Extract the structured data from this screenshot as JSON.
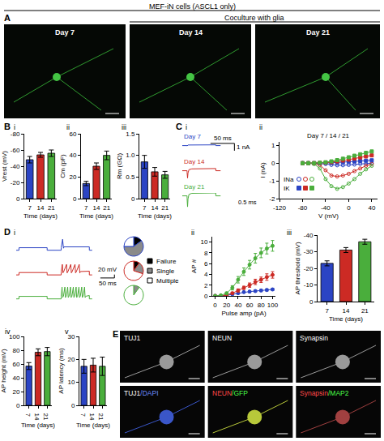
{
  "banner": {
    "title": "MEF-iN cells (ASCL1 only)",
    "subtitle": "Coculture with glia"
  },
  "panel_a": {
    "label": "A",
    "images": [
      "Day 7",
      "Day 14",
      "Day 21"
    ]
  },
  "panel_e": {
    "label": "E",
    "images": [
      [
        {
          "text": "TUJ1",
          "color": "#ffffff"
        }
      ],
      [
        {
          "text": "NEUN",
          "color": "#ffffff"
        }
      ],
      [
        {
          "text": "Synapsin",
          "color": "#ffffff"
        }
      ],
      [
        {
          "text": "TUJ1",
          "color": "#ffffff"
        },
        {
          "text": "/DAPI",
          "color": "#6a8cff"
        }
      ],
      [
        {
          "text": "NEUN",
          "color": "#ff4a4a"
        },
        {
          "text": "/GFP",
          "color": "#4aff4a"
        }
      ],
      [
        {
          "text": "Synapsin",
          "color": "#ff4a4a"
        },
        {
          "text": "/MAP2",
          "color": "#4aff4a"
        }
      ]
    ]
  },
  "chart_data": [
    {
      "type": "bar",
      "panel": "B",
      "sub": "i",
      "categories": [
        "7",
        "14",
        "21"
      ],
      "values": [
        -48,
        -54,
        -56
      ],
      "errors": [
        4,
        3,
        4
      ],
      "colors": [
        "#2b44c4",
        "#cc2a24",
        "#4aae3c"
      ],
      "x_label": "Time (days)",
      "y_label": "Vrest (mV)",
      "ylim": [
        0,
        -80
      ],
      "yticks": [
        0,
        -20,
        -40,
        -60,
        -80
      ]
    },
    {
      "type": "bar",
      "sub": "ii",
      "categories": [
        "7",
        "14",
        "21"
      ],
      "values": [
        14,
        30,
        40
      ],
      "errors": [
        2,
        3,
        4
      ],
      "colors": [
        "#2b44c4",
        "#cc2a24",
        "#4aae3c"
      ],
      "x_label": "Time (days)",
      "y_label": "Cm (pF)",
      "ylim": [
        0,
        60
      ],
      "yticks": [
        0,
        20,
        40,
        60
      ]
    },
    {
      "type": "bar",
      "sub": "iii",
      "categories": [
        "7",
        "14",
        "21"
      ],
      "values": [
        0.85,
        0.62,
        0.55
      ],
      "errors": [
        0.15,
        0.1,
        0.08
      ],
      "colors": [
        "#2b44c4",
        "#cc2a24",
        "#4aae3c"
      ],
      "x_label": "Time (days)",
      "y_label": "Rm (GΩ)",
      "ylim": [
        0,
        1.5
      ],
      "yticks": [
        0,
        0.5,
        {
          "value": 1,
          "label": "1.0"
        },
        1.5
      ]
    },
    {
      "type": "trace",
      "panel": "C",
      "sub": "i",
      "tick_labels": false,
      "xlim": [
        0,
        110
      ],
      "ylim": [
        -1.6,
        0.4
      ],
      "series": [
        {
          "name": "Day 7",
          "color": "#2b44c4",
          "x": [
            0,
            10,
            10,
            12,
            70,
            70,
            80
          ],
          "values": [
            0,
            0,
            -0.05,
            0.08,
            0.1,
            0,
            0
          ]
        },
        {
          "name": "Day 14",
          "color": "#cc2a24",
          "x": [
            0,
            10,
            10,
            11,
            12,
            14,
            20,
            70,
            70,
            80
          ],
          "values": [
            0,
            0,
            -0.2,
            -1.0,
            -0.3,
            0.15,
            0.25,
            0.3,
            0,
            0
          ]
        },
        {
          "name": "Day 21",
          "color": "#4aae3c",
          "x": [
            0,
            10,
            10,
            11,
            12,
            14,
            20,
            70,
            70,
            80
          ],
          "values": [
            0,
            0,
            -0.3,
            -1.5,
            -0.4,
            0.2,
            0.35,
            0.4,
            0,
            0
          ]
        }
      ],
      "scalebar": {
        "x": 50,
        "y": 1,
        "x_label": "50 ms",
        "y_label": "1 nA"
      },
      "inset_label": "0.5 ms"
    },
    {
      "type": "line",
      "sub": "ii",
      "x": [
        -80,
        -70,
        -60,
        -50,
        -40,
        -30,
        -20,
        -10,
        0,
        10,
        20,
        30,
        40
      ],
      "xlim": [
        -120,
        50
      ],
      "xticks": [
        -120,
        -80,
        -40,
        0,
        40
      ],
      "ylim": [
        -2,
        1.2
      ],
      "yticks": [
        -2,
        -1,
        0,
        1
      ],
      "x_label": "V (mV)",
      "y_label": "I (nA)",
      "annotation": "Day 7 / 14 / 21",
      "series": [
        {
          "name": "INa",
          "color": "#2b44c4",
          "marker": "circle-open",
          "values": [
            0,
            0,
            0,
            -0.02,
            -0.05,
            -0.1,
            -0.12,
            -0.12,
            -0.1,
            -0.08,
            -0.05,
            -0.03,
            0
          ]
        },
        {
          "name": "INa",
          "color": "#cc2a24",
          "marker": "circle-open",
          "values": [
            0,
            0,
            -0.02,
            -0.1,
            -0.4,
            -0.7,
            -0.75,
            -0.7,
            -0.6,
            -0.45,
            -0.3,
            -0.15,
            -0.05
          ]
        },
        {
          "name": "INa",
          "color": "#4aae3c",
          "marker": "circle-open",
          "values": [
            0,
            0,
            -0.05,
            -0.3,
            -0.9,
            -1.3,
            -1.45,
            -1.35,
            -1.15,
            -0.9,
            -0.6,
            -0.35,
            -0.15
          ]
        },
        {
          "name": "IK",
          "color": "#2b44c4",
          "marker": "square",
          "values": [
            0,
            0,
            0,
            0,
            0.01,
            0.02,
            0.04,
            0.06,
            0.08,
            0.1,
            0.12,
            0.14,
            0.16
          ]
        },
        {
          "name": "IK",
          "color": "#cc2a24",
          "marker": "square",
          "values": [
            0,
            0,
            0,
            0.01,
            0.03,
            0.06,
            0.1,
            0.15,
            0.2,
            0.26,
            0.32,
            0.38,
            0.44
          ]
        },
        {
          "name": "IK",
          "color": "#4aae3c",
          "marker": "square",
          "values": [
            0,
            0,
            0,
            0.02,
            0.05,
            0.1,
            0.17,
            0.25,
            0.33,
            0.42,
            0.5,
            0.58,
            0.66
          ]
        }
      ]
    },
    {
      "type": "trace",
      "panel": "D",
      "sub": "i",
      "tick_labels": false,
      "xlim": [
        0,
        360
      ],
      "ylim": [
        -95,
        20
      ],
      "series": [
        {
          "color": "#2b44c4",
          "x": [
            0,
            10,
            10,
            110,
            110,
            160,
            160,
            165,
            168,
            170,
            260,
            260,
            270
          ],
          "values": [
            -60,
            -60,
            -45,
            -45,
            -60,
            -60,
            -45,
            5,
            -48,
            -40,
            -40,
            -60,
            -60
          ]
        },
        {
          "color": "#cc2a24",
          "x": [
            0,
            10,
            10,
            110,
            110,
            160,
            160,
            164,
            166,
            169,
            179,
            181,
            184,
            194,
            196,
            199,
            209,
            211,
            214,
            224,
            226,
            229,
            260,
            260,
            270
          ],
          "values": [
            -62,
            -62,
            -48,
            -48,
            -62,
            -62,
            -45,
            0,
            -50,
            -42,
            0,
            -50,
            -42,
            0,
            -50,
            -42,
            0,
            -50,
            -42,
            0,
            -50,
            -42,
            -40,
            -62,
            -62
          ]
        },
        {
          "color": "#4aae3c",
          "x": [
            0,
            10,
            10,
            110,
            110,
            160,
            160,
            163,
            165,
            168,
            173,
            175,
            178,
            183,
            185,
            188,
            193,
            195,
            198,
            203,
            205,
            208,
            213,
            215,
            218,
            223,
            225,
            228,
            233,
            235,
            238,
            243,
            245,
            248,
            260,
            260,
            270
          ],
          "values": [
            -60,
            -60,
            -45,
            -45,
            -60,
            -60,
            -45,
            10,
            -52,
            -44,
            10,
            -52,
            -44,
            10,
            -52,
            -44,
            10,
            -52,
            -44,
            10,
            -52,
            -44,
            10,
            -52,
            -44,
            10,
            -52,
            -44,
            10,
            -52,
            -44,
            10,
            -52,
            -44,
            -40,
            -60,
            -60
          ]
        }
      ],
      "scalebar": {
        "x": 50,
        "y": 20,
        "x_label": "50 ms",
        "y_label": "20 mV"
      },
      "pie": {
        "labels": [
          "Failure",
          "Single",
          "Multiple"
        ],
        "colors": [
          "#000000",
          "#8a8a8a",
          "#ffffff"
        ],
        "values": [
          [
            15,
            60,
            25
          ],
          [
            10,
            20,
            70
          ],
          [
            0,
            10,
            90
          ]
        ]
      }
    },
    {
      "type": "line",
      "sub": "ii",
      "x": [
        0,
        10,
        20,
        30,
        40,
        50,
        60,
        70,
        80,
        90,
        100
      ],
      "xlim": [
        -5,
        105
      ],
      "xticks": [
        0,
        20,
        40,
        60,
        80,
        100
      ],
      "ylim": [
        0,
        11
      ],
      "yticks": [
        0,
        2,
        4,
        6,
        8,
        10
      ],
      "x_label": "Pulse amp (pA)",
      "y_label": "AP #",
      "marker": "circle",
      "series": [
        {
          "color": "#2b44c4",
          "values": [
            0,
            0,
            0.1,
            0.3,
            0.5,
            0.7,
            0.8,
            0.9,
            1.0,
            1.1,
            1.2
          ],
          "errors": [
            0,
            0,
            0.1,
            0.1,
            0.15,
            0.15,
            0.2,
            0.2,
            0.2,
            0.2,
            0.2
          ]
        },
        {
          "color": "#cc2a24",
          "values": [
            0,
            0,
            0.2,
            0.5,
            1,
            1.5,
            2,
            2.6,
            3,
            3.5,
            3.9
          ],
          "errors": [
            0,
            0,
            0.1,
            0.2,
            0.3,
            0.3,
            0.4,
            0.5,
            0.5,
            0.6,
            0.6
          ]
        },
        {
          "color": "#4aae3c",
          "values": [
            0,
            0.1,
            0.5,
            1.5,
            3,
            4.5,
            5.8,
            7,
            8,
            8.8,
            9.3
          ],
          "errors": [
            0,
            0.1,
            0.2,
            0.4,
            0.6,
            0.7,
            0.8,
            0.9,
            0.9,
            1.0,
            1.0
          ]
        }
      ]
    },
    {
      "type": "bar",
      "sub": "iii",
      "categories": [
        "7",
        "14",
        "21"
      ],
      "values": [
        -23,
        -31,
        -36
      ],
      "errors": [
        1.5,
        1.5,
        1.5
      ],
      "colors": [
        "#2b44c4",
        "#cc2a24",
        "#4aae3c"
      ],
      "x_label": "Time (days)",
      "y_label": "AP threshold (mV)",
      "ylim": [
        0,
        -40
      ],
      "yticks": [
        0,
        -10,
        -20,
        -30,
        -40
      ]
    },
    {
      "type": "bar",
      "sub": "iv",
      "categories": [
        "7",
        "14",
        "21"
      ],
      "values": [
        57,
        77,
        78
      ],
      "errors": [
        5,
        5,
        6
      ],
      "colors": [
        "#2b44c4",
        "#cc2a24",
        "#4aae3c"
      ],
      "x_label": "Time (days)",
      "y_label": "AP height (mV)",
      "ylim": [
        0,
        100
      ],
      "yticks": [
        0,
        20,
        40,
        60,
        80,
        100
      ]
    },
    {
      "type": "bar",
      "sub": "v",
      "categories": [
        "7",
        "14",
        "21"
      ],
      "values": [
        17,
        17.5,
        17
      ],
      "errors": [
        3,
        3,
        4
      ],
      "colors": [
        "#2b44c4",
        "#cc2a24",
        "#4aae3c"
      ],
      "x_label": "Time (days)",
      "y_label": "AP latency (ms)",
      "ylim": [
        0,
        30
      ],
      "yticks": [
        0,
        10,
        20,
        30
      ]
    }
  ]
}
